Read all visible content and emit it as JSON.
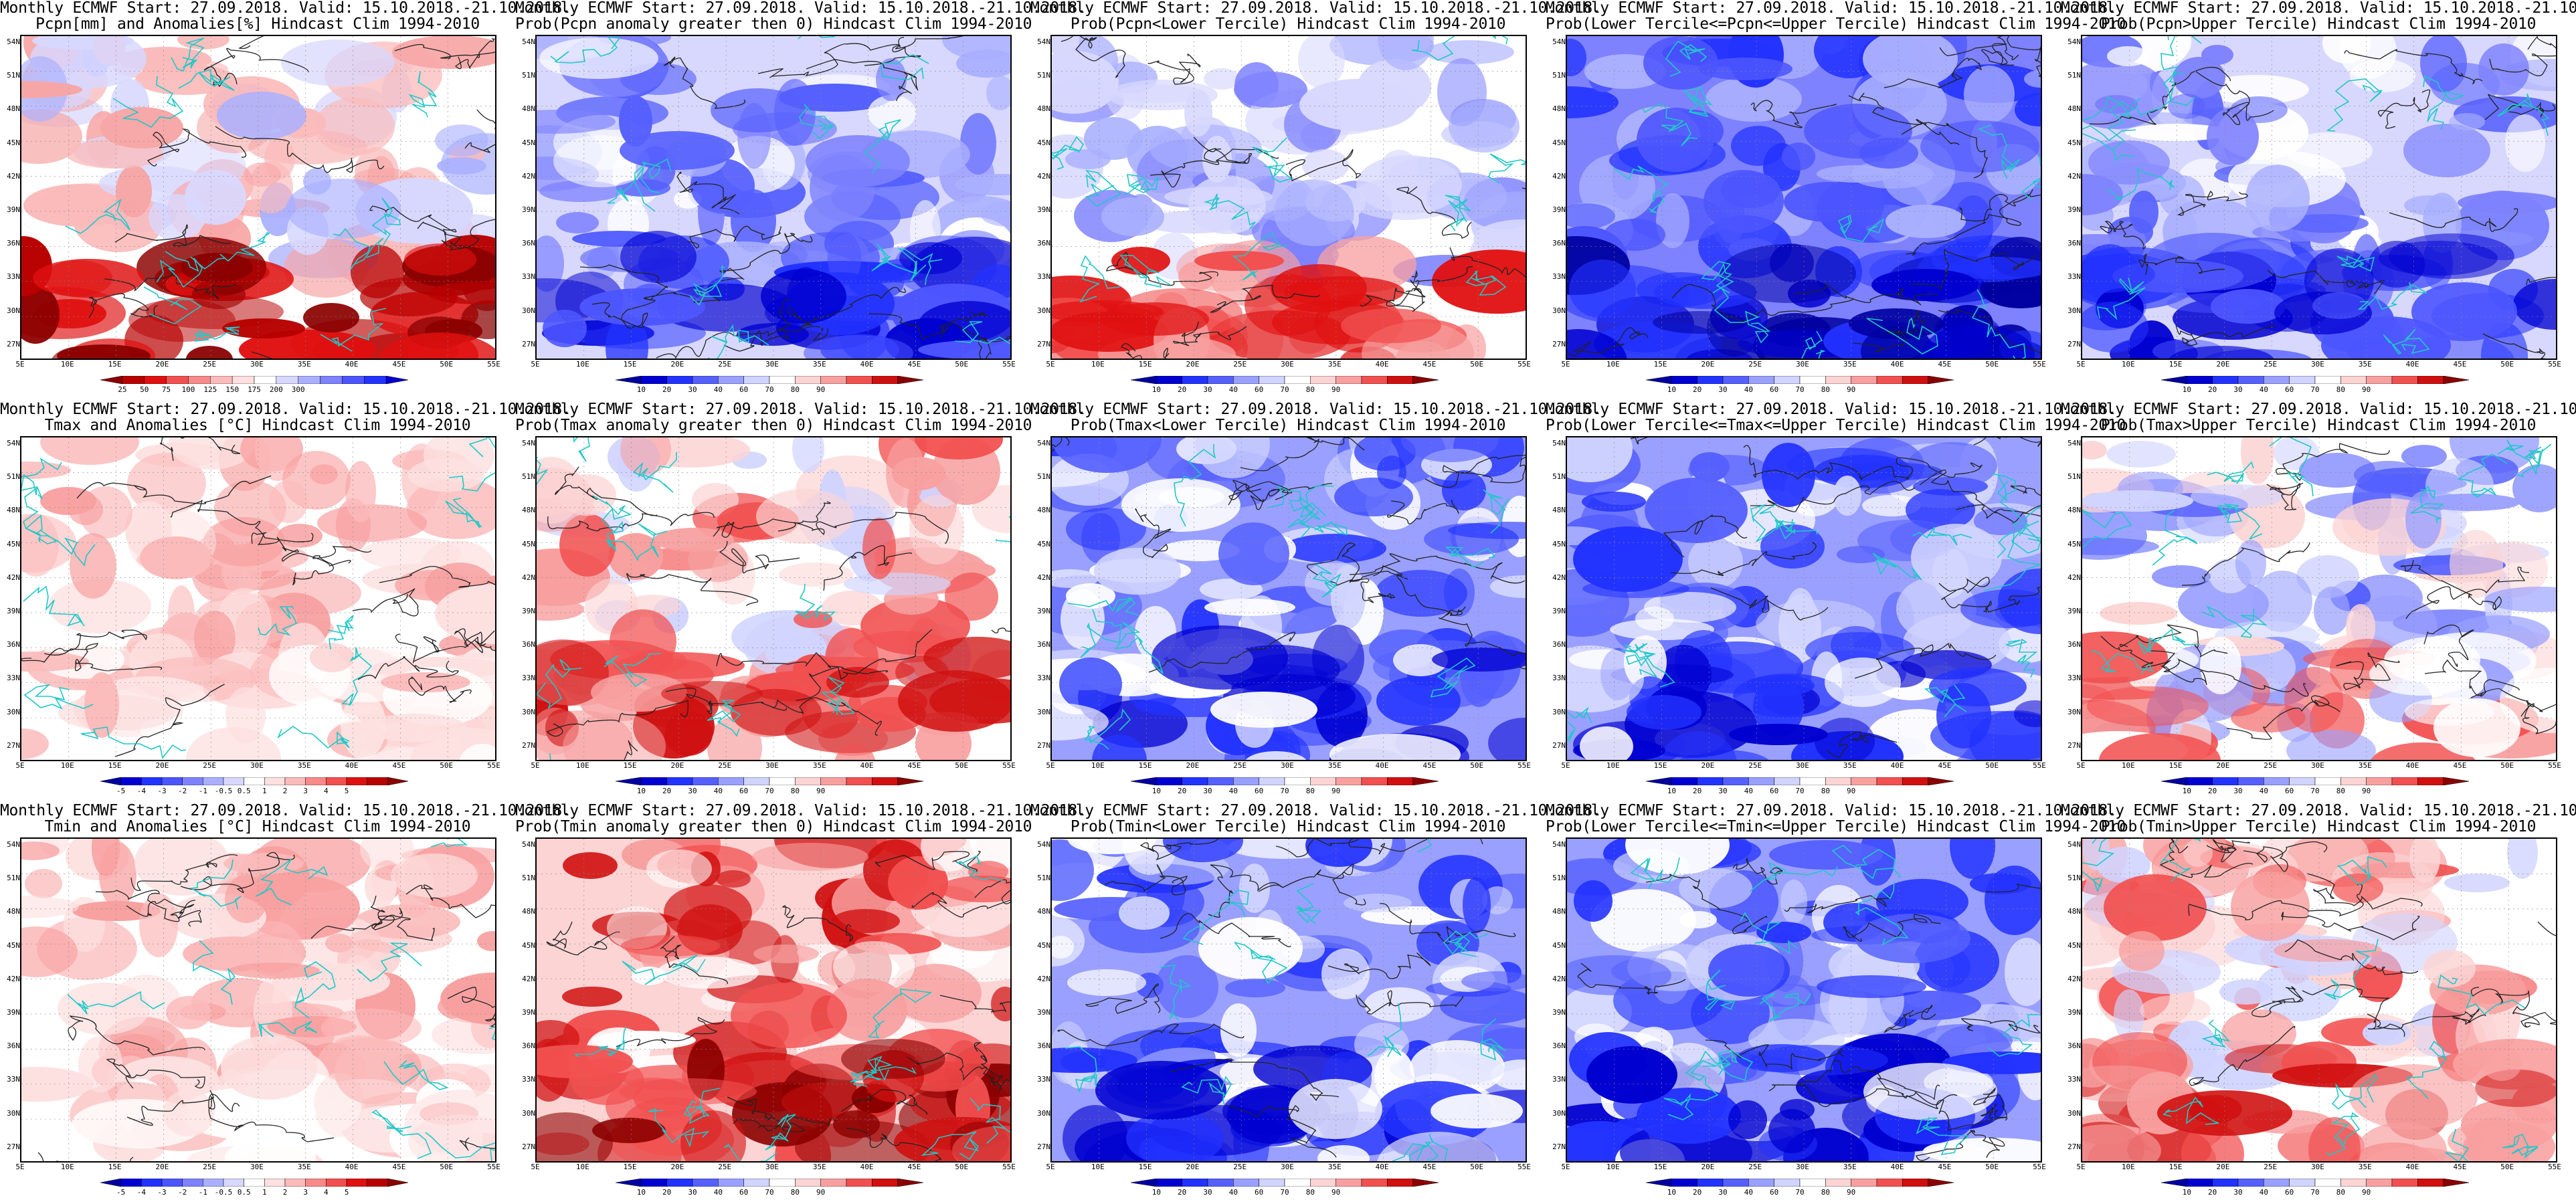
{
  "header": {
    "line1": "Monthly ECMWF Start: 27.09.2018. Valid: 15.10.2018.-21.10.2018."
  },
  "map": {
    "lat_labels": [
      "54N",
      "51N",
      "48N",
      "45N",
      "42N",
      "39N",
      "36N",
      "33N",
      "30N",
      "27N"
    ],
    "lon_labels": [
      "5E",
      "10E",
      "15E",
      "20E",
      "25E",
      "30E",
      "35E",
      "40E",
      "45E",
      "50E",
      "55E"
    ]
  },
  "colorbars": {
    "pcpn_anom": {
      "ticks": [
        "25",
        "50",
        "75",
        "100",
        "125",
        "150",
        "175",
        "200",
        "300"
      ],
      "colors": [
        "#8b0000",
        "#b80000",
        "#e01010",
        "#f25050",
        "#f88a8a",
        "#fbbbbb",
        "#fde0e0",
        "#ffffff",
        "#d8d8ff",
        "#aab0ff",
        "#7e82ff",
        "#4c55ff",
        "#2232ff",
        "#0000d0"
      ]
    },
    "temp_anom": {
      "ticks": [
        "-5",
        "-4",
        "-3",
        "-2",
        "-1",
        "-0.5",
        "0.5",
        "1",
        "2",
        "3",
        "4",
        "5"
      ],
      "colors": [
        "#0000a0",
        "#0000d0",
        "#2232ff",
        "#4c55ff",
        "#7e82ff",
        "#aab0ff",
        "#d8d8ff",
        "#ffffff",
        "#fde0e0",
        "#fbbbbb",
        "#f88a8a",
        "#f25050",
        "#e01010",
        "#b80000",
        "#8b0000"
      ]
    },
    "prob": {
      "ticks": [
        "10",
        "20",
        "30",
        "40",
        "60",
        "70",
        "80",
        "90"
      ],
      "colors": [
        "#0000a0",
        "#0000d0",
        "#2232ff",
        "#5560ff",
        "#9aa0ff",
        "#d0d4ff",
        "#ffffff",
        "#fcd4d4",
        "#f8a0a0",
        "#f25050",
        "#d01010",
        "#8b0000"
      ]
    }
  },
  "panels": [
    {
      "id": "pcpn-anom",
      "title2": "Pcpn[mm] and Anomalies[%] Hindcast Clim 1994-2010",
      "field": "pcpn",
      "bar": "pcpn_anom"
    },
    {
      "id": "pcpn-prob-gt0",
      "title2": "Prob(Pcpn anomaly greater then 0) Hindcast Clim 1994-2010",
      "field": "blue_mix",
      "bar": "prob"
    },
    {
      "id": "pcpn-prob-lower",
      "title2": "Prob(Pcpn<Lower Tercile) Hindcast Clim 1994-2010",
      "field": "mix_red_south",
      "bar": "prob"
    },
    {
      "id": "pcpn-prob-middle",
      "title2": "Prob(Lower Tercile<=Pcpn<=Upper Tercile) Hindcast Clim 1994-2010",
      "field": "deep_blue",
      "bar": "prob"
    },
    {
      "id": "pcpn-prob-upper",
      "title2": "Prob(Pcpn>Upper Tercile) Hindcast Clim 1994-2010",
      "field": "blue_mix",
      "bar": "prob"
    },
    {
      "id": "tmax-anom",
      "title2": "Tmax and Anomalies [°C] Hindcast Clim 1994-2010",
      "field": "light_red",
      "bar": "temp_anom"
    },
    {
      "id": "tmax-prob-gt0",
      "title2": "Prob(Tmax anomaly greater then 0) Hindcast Clim 1994-2010",
      "field": "red_mix",
      "bar": "prob"
    },
    {
      "id": "tmax-prob-lower",
      "title2": "Prob(Tmax<Lower Tercile) Hindcast Clim 1994-2010",
      "field": "blue_heavy",
      "bar": "prob"
    },
    {
      "id": "tmax-prob-middle",
      "title2": "Prob(Lower Tercile<=Tmax<=Upper Tercile) Hindcast Clim 1994-2010",
      "field": "blue_heavy",
      "bar": "prob"
    },
    {
      "id": "tmax-prob-upper",
      "title2": "Prob(Tmax>Upper Tercile) Hindcast Clim 1994-2010",
      "field": "blue_light",
      "bar": "prob"
    },
    {
      "id": "tmin-anom",
      "title2": "Tmin and Anomalies [°C] Hindcast Clim 1994-2010",
      "field": "light_red",
      "bar": "temp_anom"
    },
    {
      "id": "tmin-prob-gt0",
      "title2": "Prob(Tmin anomaly greater then 0) Hindcast Clim 1994-2010",
      "field": "red_strong",
      "bar": "prob"
    },
    {
      "id": "tmin-prob-lower",
      "title2": "Prob(Tmin<Lower Tercile) Hindcast Clim 1994-2010",
      "field": "blue_heavy",
      "bar": "prob"
    },
    {
      "id": "tmin-prob-middle",
      "title2": "Prob(Lower Tercile<=Tmin<=Upper Tercile) Hindcast Clim 1994-2010",
      "field": "blue_heavy",
      "bar": "prob"
    },
    {
      "id": "tmin-prob-upper",
      "title2": "Prob(Tmin>Upper Tercile) Hindcast Clim 1994-2010",
      "field": "red_mix",
      "bar": "prob"
    }
  ]
}
